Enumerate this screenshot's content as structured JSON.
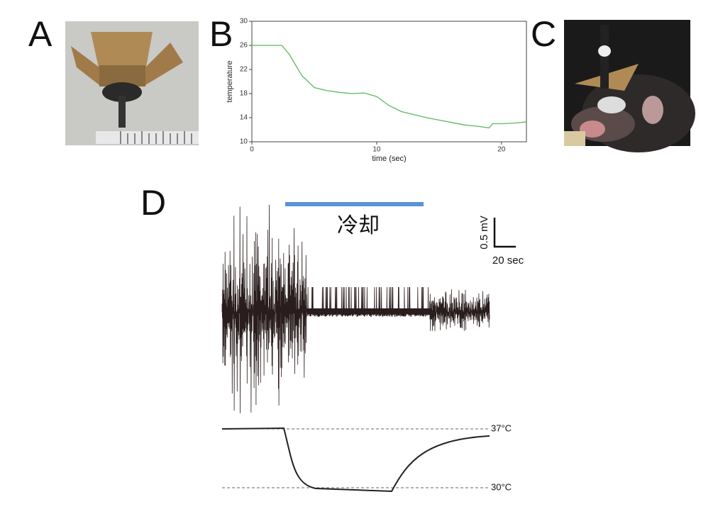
{
  "panels": {
    "a": "A",
    "b": "B",
    "c": "C",
    "d": "D"
  },
  "chart_data": {
    "type": "line",
    "x_label": "time (sec)",
    "y_label": "temperature",
    "xlim": [
      0,
      22
    ],
    "xticks": [
      0,
      10,
      20
    ],
    "ylim": [
      10,
      30
    ],
    "yticks": [
      10,
      14,
      18,
      22,
      26,
      30
    ],
    "series": [
      {
        "color": "#5cb85c",
        "x": [
          0,
          1,
          2.4,
          3,
          4,
          5,
          6,
          7,
          8,
          9,
          10,
          11,
          12,
          13,
          14,
          15,
          16,
          17,
          18,
          19,
          19.3,
          20,
          21,
          22
        ],
        "values": [
          26,
          26,
          26,
          24.5,
          21,
          19,
          18.5,
          18.2,
          18,
          18.1,
          17.5,
          16,
          15,
          14.5,
          14,
          13.6,
          13.2,
          12.8,
          12.6,
          12.3,
          13,
          13,
          13.1,
          13.3
        ]
      }
    ]
  },
  "cooling_label": "冷却",
  "scale_bar": {
    "y": "0.5 mV",
    "x": "20  sec"
  },
  "temp_labels": [
    "37°C",
    "30°C"
  ]
}
